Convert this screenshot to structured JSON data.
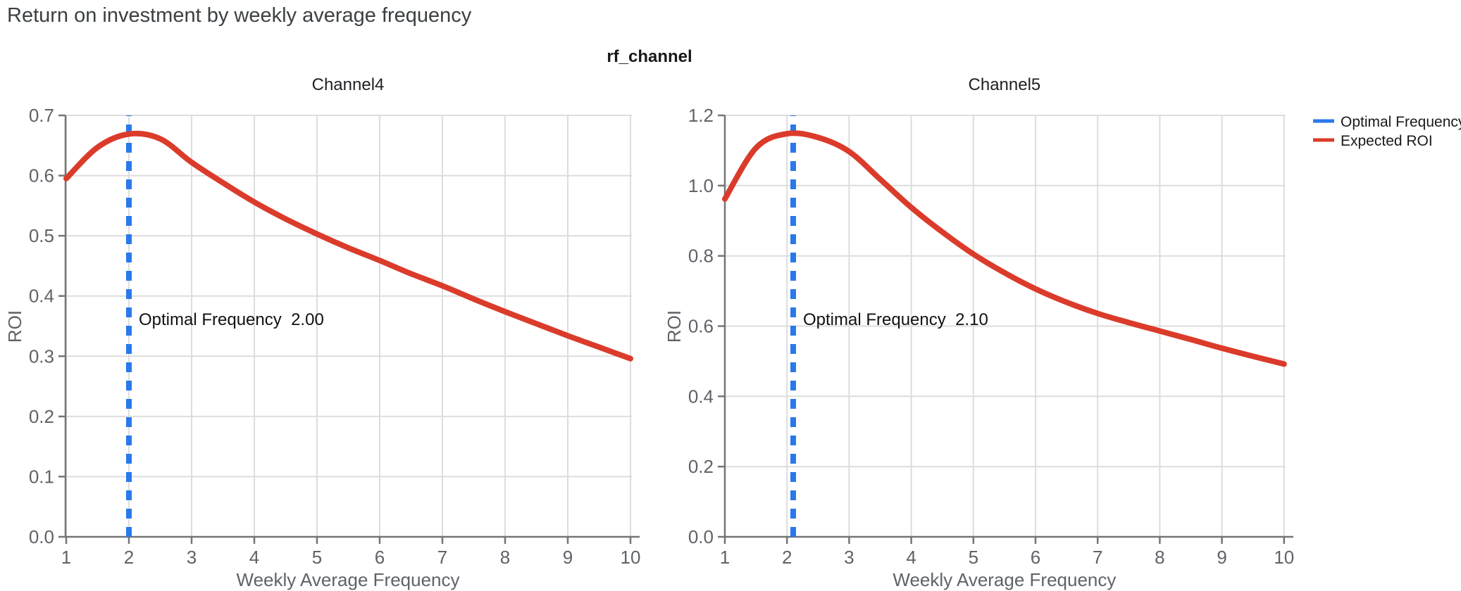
{
  "page": {
    "title": "Return on investment by weekly average frequency"
  },
  "chart": {
    "facet_title": "rf_channel",
    "legend": {
      "items": [
        {
          "label": "Optimal Frequency",
          "color": "#2979EA"
        },
        {
          "label": "Expected ROI",
          "color": "#DB3B2B"
        }
      ]
    },
    "colors": {
      "roi_line": "#DB3B2B",
      "optimal_line": "#2979EA",
      "grid": "#DDDDDD",
      "axis": "#757575",
      "tick_text": "#5F6368",
      "title_text": "#3C4043"
    }
  },
  "chart_data": [
    {
      "type": "line",
      "title": "Channel4",
      "xlabel": "Weekly Average Frequency",
      "ylabel": "ROI",
      "xlim": [
        1,
        10
      ],
      "ylim": [
        0,
        0.7
      ],
      "xticks": [
        1,
        2,
        3,
        4,
        5,
        6,
        7,
        8,
        9,
        10
      ],
      "yticks": [
        0,
        0.1,
        0.2,
        0.3,
        0.4,
        0.5,
        0.6,
        0.7
      ],
      "ytick_labels": [
        "0.0",
        "0.1",
        "0.2",
        "0.3",
        "0.4",
        "0.5",
        "0.6",
        "0.7"
      ],
      "grid": true,
      "annotation": "Optimal Frequency  2.00",
      "optimal_frequency": 2.0,
      "series": [
        {
          "name": "Expected ROI",
          "kind": "curve",
          "x": [
            1,
            1.5,
            2,
            2.5,
            3,
            3.5,
            4,
            4.5,
            5,
            5.5,
            6,
            6.5,
            7,
            7.5,
            8,
            8.5,
            9,
            9.5,
            10
          ],
          "y": [
            0.595,
            0.647,
            0.669,
            0.661,
            0.622,
            0.588,
            0.556,
            0.528,
            0.503,
            0.48,
            0.459,
            0.437,
            0.417,
            0.395,
            0.374,
            0.354,
            0.334,
            0.315,
            0.296
          ]
        },
        {
          "name": "Optimal Frequency",
          "kind": "vline",
          "x": 2.0
        }
      ]
    },
    {
      "type": "line",
      "title": "Channel5",
      "xlabel": "Weekly Average Frequency",
      "ylabel": "ROI",
      "xlim": [
        1,
        10
      ],
      "ylim": [
        0,
        1.2
      ],
      "xticks": [
        1,
        2,
        3,
        4,
        5,
        6,
        7,
        8,
        9,
        10
      ],
      "yticks": [
        0,
        0.2,
        0.4,
        0.6,
        0.8,
        1.0,
        1.2
      ],
      "ytick_labels": [
        "0.0",
        "0.2",
        "0.4",
        "0.6",
        "0.8",
        "1.0",
        "1.2"
      ],
      "grid": true,
      "annotation": "Optimal Frequency  2.10",
      "optimal_frequency": 2.1,
      "series": [
        {
          "name": "Expected ROI",
          "kind": "curve",
          "x": [
            1,
            1.5,
            2,
            2.5,
            3,
            3.5,
            4,
            4.5,
            5,
            5.5,
            6,
            6.5,
            7,
            7.5,
            8,
            8.5,
            9,
            9.5,
            10
          ],
          "y": [
            0.962,
            1.107,
            1.148,
            1.137,
            1.097,
            1.018,
            0.938,
            0.868,
            0.805,
            0.752,
            0.706,
            0.668,
            0.636,
            0.61,
            0.586,
            0.562,
            0.537,
            0.514,
            0.492
          ]
        },
        {
          "name": "Optimal Frequency",
          "kind": "vline",
          "x": 2.1
        }
      ]
    }
  ]
}
